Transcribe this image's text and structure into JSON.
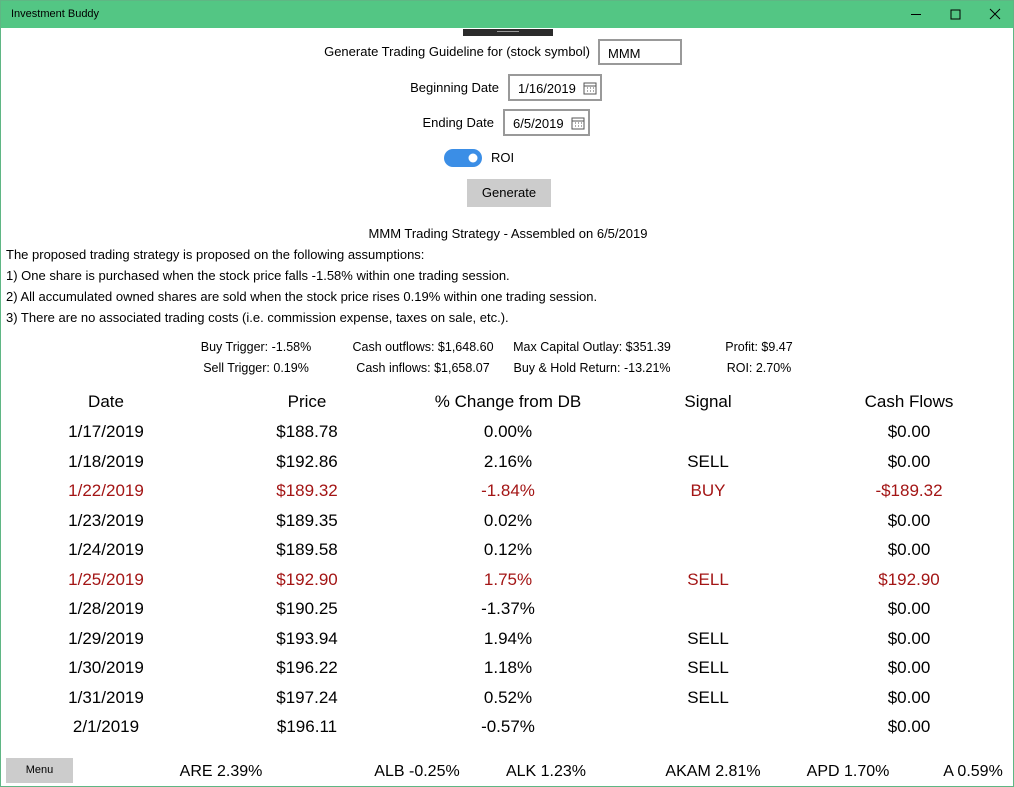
{
  "window": {
    "title": "Investment Buddy"
  },
  "form": {
    "symbol_label": "Generate Trading Guideline for (stock symbol)",
    "symbol": "MMM",
    "begin_label": "Beginning Date",
    "begin": "1/16/2019",
    "end_label": "Ending Date",
    "end": "6/5/2019",
    "toggle_label": "ROI",
    "button": "Generate"
  },
  "report": {
    "title": "MMM Trading Strategy - Assembled on 6/5/2019",
    "assumptions": [
      "The proposed trading strategy is proposed on the following assumptions:",
      "1) One share is purchased when the stock price falls -1.58% within one trading session.",
      "2) All accumulated owned shares are sold when the stock price rises 0.19% within one trading session.",
      "3) There are no associated trading costs (i.e. commission expense, taxes on sale, etc.)."
    ],
    "stats": [
      [
        "Buy Trigger: -1.58%",
        "Cash outflows: $1,648.60",
        "Max Capital Outlay: $351.39",
        "Profit: $9.47"
      ],
      [
        "Sell Trigger: 0.19%",
        "Cash inflows: $1,658.07",
        "Buy & Hold Return: -13.21%",
        "ROI: 2.70%"
      ]
    ]
  },
  "table": {
    "columns": [
      "Date",
      "Price",
      "% Change from DB",
      "Signal",
      "Cash Flows"
    ],
    "rows": [
      [
        "1/17/2019",
        "$188.78",
        "0.00%",
        null,
        "$0.00"
      ],
      [
        "1/18/2019",
        "$192.86",
        "2.16%",
        "SELL",
        "$0.00"
      ],
      [
        "1/22/2019",
        "$189.32",
        "-1.84%",
        "BUY",
        "-$189.32"
      ],
      [
        "1/23/2019",
        "$189.35",
        "0.02%",
        null,
        "$0.00"
      ],
      [
        "1/24/2019",
        "$189.58",
        "0.12%",
        null,
        "$0.00"
      ],
      [
        "1/25/2019",
        "$192.90",
        "1.75%",
        "SELL",
        "$192.90"
      ],
      [
        "1/28/2019",
        "$190.25",
        "-1.37%",
        null,
        "$0.00"
      ],
      [
        "1/29/2019",
        "$193.94",
        "1.94%",
        "SELL",
        "$0.00"
      ],
      [
        "1/30/2019",
        "$196.22",
        "1.18%",
        "SELL",
        "$0.00"
      ],
      [
        "1/31/2019",
        "$197.24",
        "0.52%",
        "SELL",
        "$0.00"
      ],
      [
        "2/1/2019",
        "$196.11",
        "-0.57%",
        null,
        "$0.00"
      ]
    ],
    "highlight_rows": [
      2,
      5
    ],
    "highlight_color": "#a31515"
  },
  "footer": {
    "menu": "Menu",
    "ticker": [
      "ARE 2.39%",
      "ALB -0.25%",
      "ALK 1.23%",
      "AKAM 2.81%",
      "APD 1.70%",
      "A 0.59%"
    ]
  }
}
